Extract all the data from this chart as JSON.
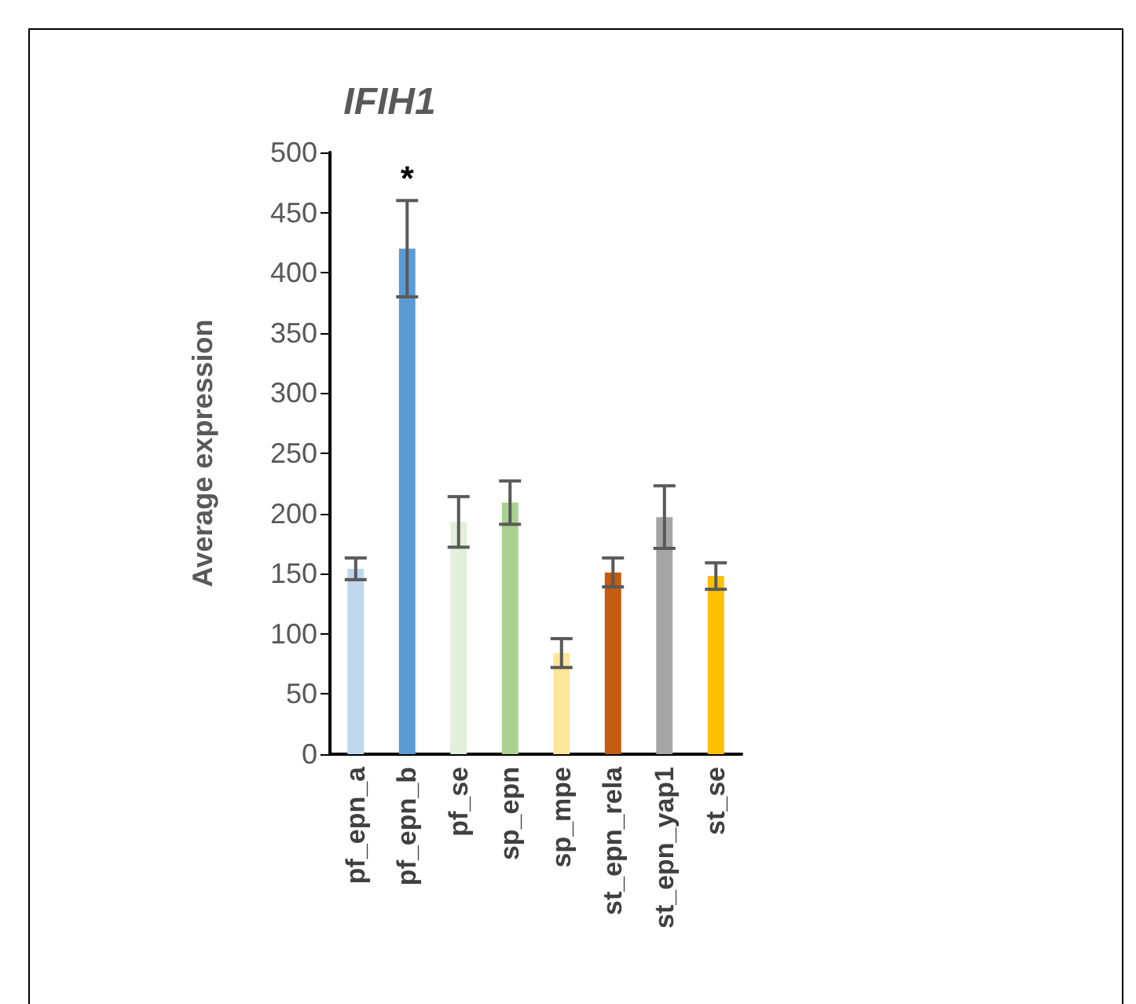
{
  "chart_data": {
    "type": "bar",
    "title": "IFIH1",
    "ylabel": "Average expression",
    "categories": [
      "pf_epn_a",
      "pf_epn_b",
      "pf_se",
      "sp_epn",
      "sp_mpe",
      "st_epn_rela",
      "st_epn_yap1",
      "st_se"
    ],
    "values": [
      154,
      420,
      193,
      209,
      84,
      151,
      197,
      148
    ],
    "colors": [
      "#bdd7ee",
      "#5b9bd5",
      "#e2efda",
      "#a9d18e",
      "#ffe699",
      "#c55a11",
      "#a5a5a5",
      "#ffc000"
    ],
    "errors": [
      9,
      40,
      21,
      18,
      12,
      12,
      26,
      11
    ],
    "annotations": [
      "*"
    ],
    "ylim": [
      0,
      500
    ],
    "yticks": [
      0,
      50,
      100,
      150,
      200,
      250,
      300,
      350,
      400,
      450,
      500
    ],
    "grid": false
  }
}
